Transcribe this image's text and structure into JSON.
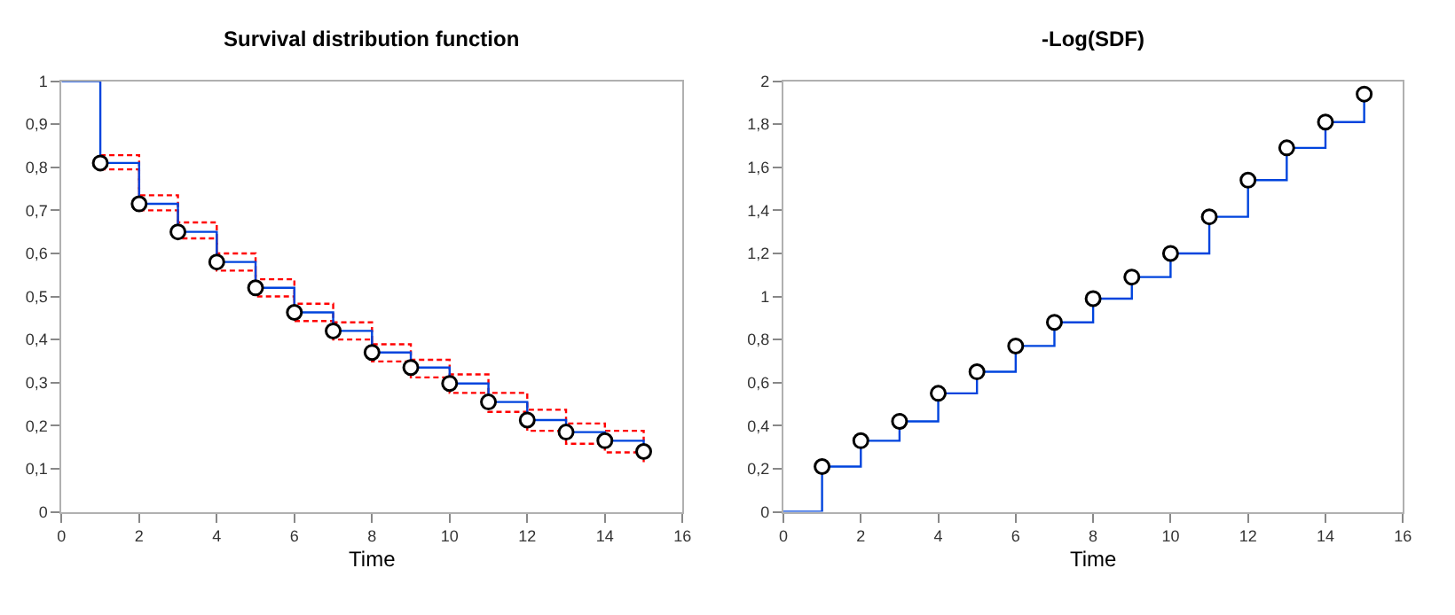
{
  "chart_data": [
    {
      "type": "step",
      "title": "Survival distribution function",
      "xlabel": "Time",
      "xlim": [
        0,
        16
      ],
      "xticks": [
        0,
        2,
        4,
        6,
        8,
        10,
        12,
        14,
        16
      ],
      "ylim": [
        0,
        1
      ],
      "yticks": [
        0,
        {
          "value": 0.1,
          "label": "0,1"
        },
        {
          "value": 0.2,
          "label": "0,2"
        },
        {
          "value": 0.3,
          "label": "0,3"
        },
        {
          "value": 0.4,
          "label": "0,4"
        },
        {
          "value": 0.5,
          "label": "0,5"
        },
        {
          "value": 0.6,
          "label": "0,6"
        },
        {
          "value": 0.7,
          "label": "0,7"
        },
        {
          "value": 0.8,
          "label": "0,8"
        },
        {
          "value": 0.9,
          "label": "0,9"
        },
        1
      ],
      "series": [
        {
          "color": "#ff0000",
          "line_style": "dashed",
          "marker": "none",
          "x": [
            1,
            2,
            3,
            4,
            5,
            6,
            7,
            8,
            9,
            10,
            11,
            12,
            13,
            14,
            15
          ],
          "values": [
            0.828,
            0.735,
            0.672,
            0.6,
            0.54,
            0.483,
            0.44,
            0.389,
            0.353,
            0.319,
            0.276,
            0.237,
            0.205,
            0.188,
            0.165
          ]
        },
        {
          "color": "#ff0000",
          "line_style": "dashed",
          "marker": "none",
          "x": [
            1,
            2,
            3,
            4,
            5,
            6,
            7,
            8,
            9,
            10,
            11,
            12,
            13,
            14,
            15
          ],
          "values": [
            0.795,
            0.7,
            0.635,
            0.56,
            0.5,
            0.443,
            0.4,
            0.349,
            0.312,
            0.276,
            0.232,
            0.188,
            0.158,
            0.138,
            0.115
          ]
        },
        {
          "color": "#0044dd",
          "line_style": "solid",
          "marker": "none",
          "x": [
            0,
            1,
            2,
            3,
            4,
            5,
            6,
            7,
            8,
            9,
            10,
            11,
            12,
            13,
            14,
            15
          ],
          "values": [
            1,
            0.81,
            0.715,
            0.65,
            0.58,
            0.52,
            0.463,
            0.42,
            0.37,
            0.335,
            0.298,
            0.255,
            0.213,
            0.185,
            0.165,
            0.14
          ]
        },
        {
          "type": "scatter",
          "color": "#000000",
          "marker": "circle",
          "x": [
            1,
            2,
            3,
            4,
            5,
            6,
            7,
            8,
            9,
            10,
            11,
            12,
            13,
            14,
            15
          ],
          "values": [
            0.81,
            0.715,
            0.65,
            0.58,
            0.52,
            0.463,
            0.42,
            0.37,
            0.335,
            0.298,
            0.255,
            0.213,
            0.185,
            0.165,
            0.14
          ]
        }
      ]
    },
    {
      "type": "step",
      "title": "-Log(SDF)",
      "xlabel": "Time",
      "xlim": [
        0,
        16
      ],
      "xticks": [
        0,
        2,
        4,
        6,
        8,
        10,
        12,
        14,
        16
      ],
      "ylim": [
        0,
        2
      ],
      "yticks": [
        0,
        {
          "value": 0.2,
          "label": "0,2"
        },
        {
          "value": 0.4,
          "label": "0,4"
        },
        {
          "value": 0.6,
          "label": "0,6"
        },
        {
          "value": 0.8,
          "label": "0,8"
        },
        1,
        {
          "value": 1.2,
          "label": "1,2"
        },
        {
          "value": 1.4,
          "label": "1,4"
        },
        {
          "value": 1.6,
          "label": "1,6"
        },
        {
          "value": 1.8,
          "label": "1,8"
        },
        2
      ],
      "series": [
        {
          "color": "#0044dd",
          "line_style": "solid",
          "marker": "none",
          "x": [
            0,
            1,
            2,
            3,
            4,
            5,
            6,
            7,
            8,
            9,
            10,
            11,
            12,
            13,
            14,
            15
          ],
          "values": [
            0,
            0.21,
            0.33,
            0.42,
            0.55,
            0.65,
            0.77,
            0.88,
            0.99,
            1.09,
            1.2,
            1.37,
            1.54,
            1.69,
            1.81,
            1.94
          ]
        },
        {
          "type": "scatter",
          "color": "#000000",
          "marker": "circle",
          "x": [
            1,
            2,
            3,
            4,
            5,
            6,
            7,
            8,
            9,
            10,
            11,
            12,
            13,
            14,
            15
          ],
          "values": [
            0.21,
            0.33,
            0.42,
            0.55,
            0.65,
            0.77,
            0.88,
            0.99,
            1.09,
            1.2,
            1.37,
            1.54,
            1.69,
            1.81,
            1.94
          ]
        }
      ]
    }
  ]
}
